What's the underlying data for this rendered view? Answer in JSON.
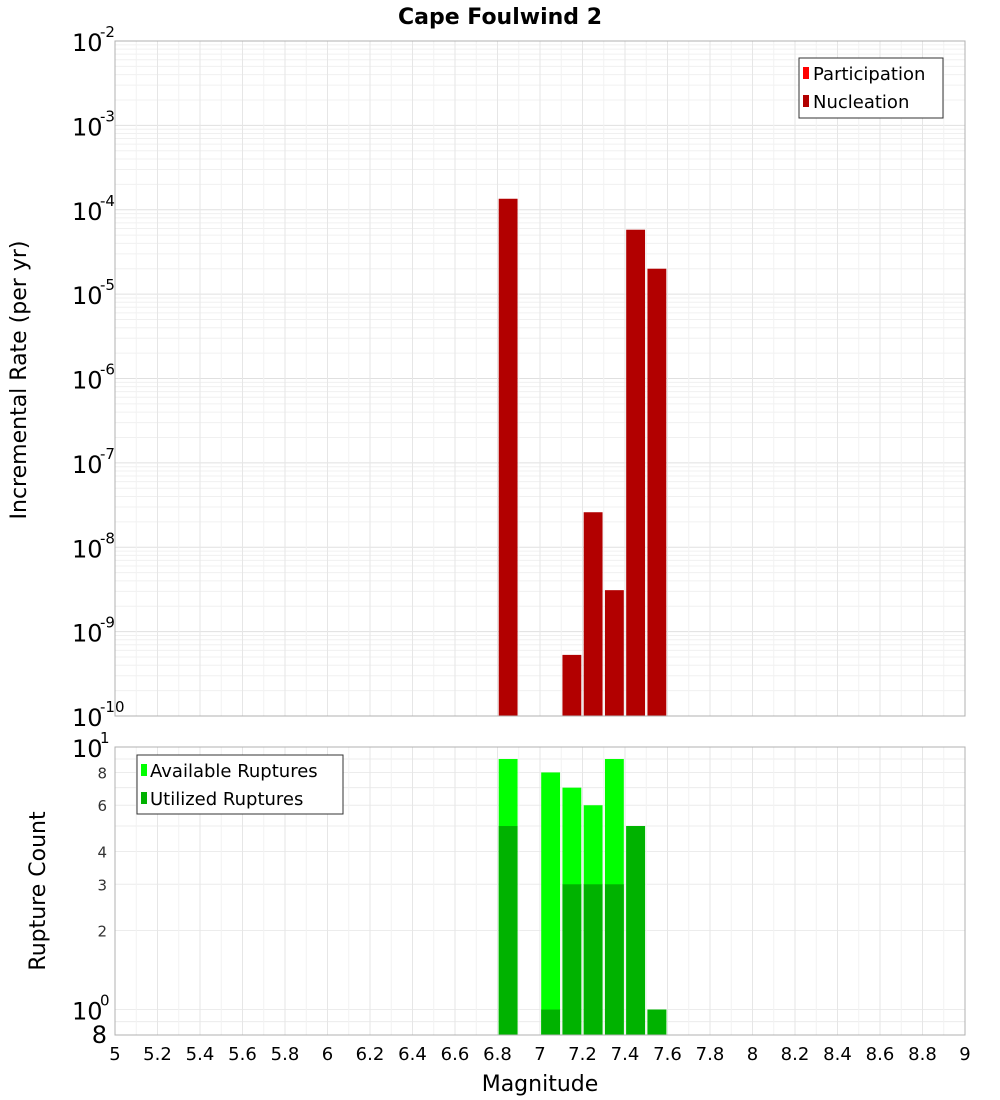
{
  "chart_data": [
    {
      "type": "bar",
      "title": "Cape Foulwind 2",
      "ylabel": "Incremental Rate (per yr)",
      "yscale": "log",
      "ylim": [
        1e-10,
        0.01
      ],
      "xlim": [
        5,
        9
      ],
      "y_ticks": [
        {
          "base": "10",
          "exp": "-2",
          "value": 0.01
        },
        {
          "base": "10",
          "exp": "-3",
          "value": 0.001
        },
        {
          "base": "10",
          "exp": "-4",
          "value": 0.0001
        },
        {
          "base": "10",
          "exp": "-5",
          "value": 1e-05
        },
        {
          "base": "10",
          "exp": "-6",
          "value": 1e-06
        },
        {
          "base": "10",
          "exp": "-7",
          "value": 1e-07
        },
        {
          "base": "10",
          "exp": "-8",
          "value": 1e-08
        },
        {
          "base": "10",
          "exp": "-9",
          "value": 1e-09
        },
        {
          "base": "10",
          "exp": "-10",
          "value": 1e-10
        }
      ],
      "legend": {
        "position": "top-right",
        "entries": [
          {
            "label": "Participation",
            "color": "#ff0000"
          },
          {
            "label": "Nucleation",
            "color": "#b20000"
          }
        ]
      },
      "series": [
        {
          "name": "Nucleation",
          "color": "#b20000",
          "x": [
            6.85,
            7.15,
            7.25,
            7.35,
            7.45,
            7.55
          ],
          "values": [
            0.000135,
            5.3e-10,
            2.6e-08,
            3.1e-09,
            5.8e-05,
            2e-05
          ]
        }
      ]
    },
    {
      "type": "bar",
      "xlabel": "Magnitude",
      "ylabel": "Rupture Count",
      "yscale": "log",
      "ylim": [
        0.8,
        10
      ],
      "xlim": [
        5,
        9
      ],
      "x_ticks": [
        "5",
        "5.2",
        "5.4",
        "5.6",
        "5.8",
        "6",
        "6.2",
        "6.4",
        "6.6",
        "6.8",
        "7",
        "7.2",
        "7.4",
        "7.6",
        "7.8",
        "8",
        "8.2",
        "8.4",
        "8.6",
        "8.8",
        "9"
      ],
      "y_ticks_major": [
        {
          "base": "10",
          "exp": "1",
          "value": 10
        },
        {
          "base": "10",
          "exp": "0",
          "value": 1
        }
      ],
      "y_ticks_minor": [
        {
          "label": "8",
          "value": 8
        },
        {
          "label": "6",
          "value": 6
        },
        {
          "label": "4",
          "value": 4
        },
        {
          "label": "3",
          "value": 3
        },
        {
          "label": "2",
          "value": 2
        }
      ],
      "y_tick_bottom": {
        "label": "8",
        "value": 0.8
      },
      "legend": {
        "position": "top-left",
        "entries": [
          {
            "label": "Available Ruptures",
            "color": "#00ff00"
          },
          {
            "label": "Utilized Ruptures",
            "color": "#00b200"
          }
        ]
      },
      "series": [
        {
          "name": "Available Ruptures",
          "color": "#00ff00",
          "x": [
            6.85,
            7.05,
            7.15,
            7.25,
            7.35,
            7.45,
            7.55
          ],
          "values": [
            9,
            8,
            7,
            6,
            9,
            5,
            1
          ]
        },
        {
          "name": "Utilized Ruptures",
          "color": "#00b200",
          "x": [
            6.85,
            7.05,
            7.15,
            7.25,
            7.35,
            7.45,
            7.55
          ],
          "values": [
            5,
            1,
            3,
            3,
            3,
            5,
            1
          ]
        }
      ]
    }
  ]
}
